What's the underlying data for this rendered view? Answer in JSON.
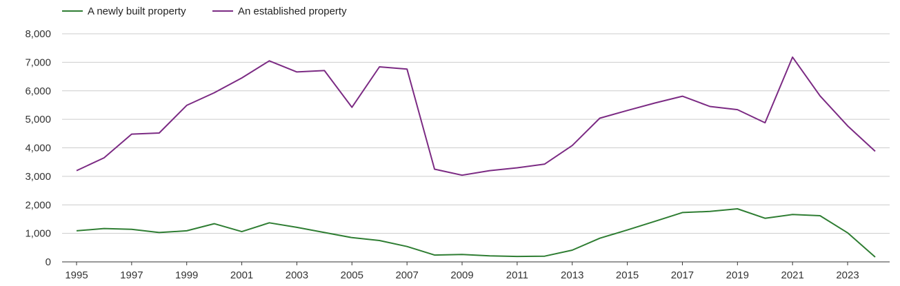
{
  "chart_data": {
    "type": "line",
    "title": "",
    "xlabel": "",
    "ylabel": "",
    "x": [
      1995,
      1996,
      1997,
      1998,
      1999,
      2000,
      2001,
      2002,
      2003,
      2004,
      2005,
      2006,
      2007,
      2008,
      2009,
      2010,
      2011,
      2012,
      2013,
      2014,
      2015,
      2016,
      2017,
      2018,
      2019,
      2020,
      2021,
      2022,
      2023,
      2024
    ],
    "x_tick_labels": [
      "1995",
      "1997",
      "1999",
      "2001",
      "2003",
      "2005",
      "2007",
      "2009",
      "2011",
      "2013",
      "2015",
      "2017",
      "2019",
      "2021",
      "2023"
    ],
    "y_tick_labels": [
      "0",
      "1,000",
      "2,000",
      "3,000",
      "4,000",
      "5,000",
      "6,000",
      "7,000",
      "8,000"
    ],
    "y_ticks": [
      0,
      1000,
      2000,
      3000,
      4000,
      5000,
      6000,
      7000,
      8000
    ],
    "ylim": [
      0,
      8000
    ],
    "xlim": [
      1995,
      2024
    ],
    "grid": true,
    "legend_position": "top-left",
    "series": [
      {
        "name": "A newly built property",
        "color": "#2e7d32",
        "values": [
          1090,
          1170,
          1140,
          1030,
          1090,
          1340,
          1060,
          1370,
          1210,
          1030,
          850,
          750,
          540,
          240,
          260,
          210,
          190,
          200,
          410,
          830,
          1120,
          1420,
          1730,
          1770,
          1860,
          1530,
          1660,
          1620,
          1020,
          170
        ]
      },
      {
        "name": "An established property",
        "color": "#7b2a83",
        "values": [
          3200,
          3650,
          4480,
          4520,
          5490,
          5930,
          6450,
          7050,
          6660,
          6710,
          5420,
          6840,
          6760,
          3250,
          3040,
          3200,
          3300,
          3430,
          4080,
          5040,
          5310,
          5570,
          5810,
          5450,
          5340,
          4880,
          7180,
          5820,
          4770,
          3880
        ]
      }
    ]
  }
}
